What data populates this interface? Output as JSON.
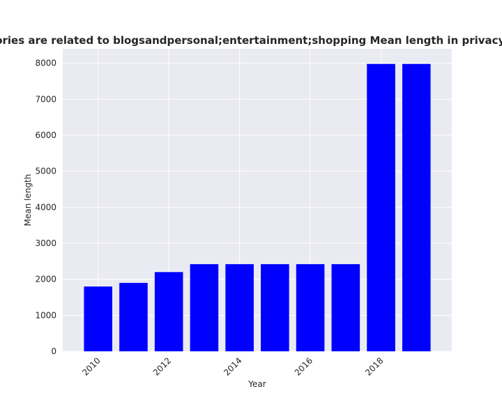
{
  "chart_data": {
    "type": "bar",
    "title": "Categories are related to blogsandpersonal;entertainment;shopping Mean length in privacy policies",
    "xlabel": "Year",
    "ylabel": "Mean length",
    "categories": [
      2010,
      2011,
      2012,
      2013,
      2014,
      2015,
      2016,
      2017,
      2018,
      2019
    ],
    "values": [
      1800,
      1900,
      2200,
      2420,
      2420,
      2420,
      2420,
      2420,
      7980,
      7980
    ],
    "x_tick_labels": [
      "2010",
      "2012",
      "2014",
      "2016",
      "2018"
    ],
    "x_tick_values": [
      2010,
      2012,
      2014,
      2016,
      2018
    ],
    "y_ticks": [
      0,
      1000,
      2000,
      3000,
      4000,
      5000,
      6000,
      7000,
      8000
    ],
    "ylim": [
      0,
      8400
    ],
    "xlim": [
      2009.0,
      2020.0
    ],
    "grid": true,
    "bar_color": "#0000ff",
    "background_color": "#eaeaf2",
    "grid_color": "#ffffff"
  }
}
